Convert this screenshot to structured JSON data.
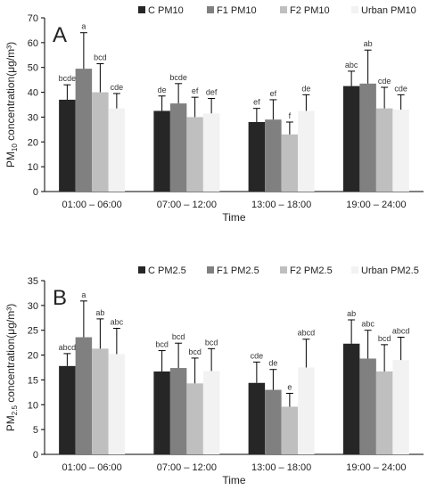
{
  "chart_data": [
    {
      "type": "bar",
      "panel_label": "A",
      "xlabel": "Time",
      "ylabel_main": "PM",
      "ylabel_sub": "10",
      "ylabel_rest": " concentration(μg/m³)",
      "ylim": [
        0,
        70
      ],
      "yticks": [
        "0",
        "10",
        "20",
        "30",
        "40",
        "50",
        "60",
        "70"
      ],
      "categories": [
        "01:00 – 06:00",
        "07:00 – 12:00",
        "13:00 – 18:00",
        "19:00 – 24:00"
      ],
      "legend_placement": "top-right",
      "series": [
        {
          "name": "C PM10",
          "color": "#262626",
          "values": [
            37,
            32.5,
            28,
            42.5
          ],
          "errors": [
            6,
            6,
            5.5,
            6
          ],
          "labels": [
            "bcde",
            "de",
            "ef",
            "abc"
          ]
        },
        {
          "name": "F1 PM10",
          "color": "#808080",
          "values": [
            49.5,
            35.5,
            29,
            43.5
          ],
          "errors": [
            14.5,
            8,
            8,
            13.5
          ],
          "labels": [
            "a",
            "bcde",
            "ef",
            "ab"
          ]
        },
        {
          "name": "F2 PM10",
          "color": "#bfbfbf",
          "values": [
            40,
            30,
            23,
            33.5
          ],
          "errors": [
            11.5,
            8,
            5,
            8.5
          ],
          "labels": [
            "bcd",
            "ef",
            "f",
            "cde"
          ]
        },
        {
          "name": "Urban PM10",
          "color": "#f2f2f2",
          "values": [
            33.5,
            31.5,
            32.5,
            33
          ],
          "errors": [
            6,
            6,
            6.5,
            6
          ],
          "labels": [
            "cde",
            "def",
            "de",
            "cde"
          ]
        }
      ]
    },
    {
      "type": "bar",
      "panel_label": "B",
      "xlabel": "Time",
      "ylabel_main": "PM",
      "ylabel_sub": "2.5",
      "ylabel_rest": " concentration(μg/m³)",
      "ylim": [
        0,
        35
      ],
      "yticks": [
        "0",
        "5",
        "10",
        "15",
        "20",
        "25",
        "30",
        "35"
      ],
      "categories": [
        "01:00 – 06:00",
        "07:00 – 12:00",
        "13:00 – 18:00",
        "19:00 – 24:00"
      ],
      "legend_placement": "top-right",
      "series": [
        {
          "name": "C PM2.5",
          "color": "#262626",
          "values": [
            17.8,
            16.7,
            14.4,
            22.3
          ],
          "errors": [
            2.5,
            4.2,
            4.2,
            4.8
          ],
          "labels": [
            "abcd",
            "bcd",
            "cde",
            "ab"
          ]
        },
        {
          "name": "F1 PM2.5",
          "color": "#808080",
          "values": [
            23.6,
            17.4,
            13,
            19.3
          ],
          "errors": [
            7.3,
            5,
            4.1,
            5.7
          ],
          "labels": [
            "a",
            "bcd",
            "de",
            "abc"
          ]
        },
        {
          "name": "F2 PM2.5",
          "color": "#bfbfbf",
          "values": [
            21.3,
            14.3,
            9.6,
            16.7
          ],
          "errors": [
            6,
            5.1,
            2.7,
            5.4
          ],
          "labels": [
            "ab",
            "bcd",
            "e",
            "bcd"
          ]
        },
        {
          "name": "Urban PM2.5",
          "color": "#f2f2f2",
          "values": [
            20.2,
            16.8,
            17.5,
            19
          ],
          "errors": [
            5.2,
            4.5,
            5.7,
            4.6
          ],
          "labels": [
            "abc",
            "bcd",
            "abcd",
            "abcd"
          ]
        }
      ]
    }
  ]
}
